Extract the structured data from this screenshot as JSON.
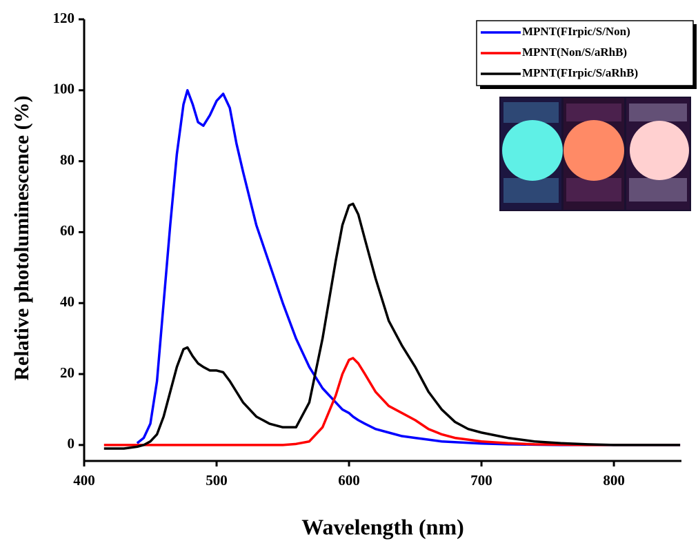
{
  "chart_data": {
    "type": "line",
    "x_label": "Wavelength (nm)",
    "y_label": "Relative photoluminescence (%)",
    "x": [
      415,
      430,
      440,
      445,
      450,
      455,
      460,
      465,
      470,
      475,
      478,
      482,
      486,
      490,
      495,
      500,
      505,
      510,
      515,
      520,
      530,
      540,
      550,
      560,
      570,
      580,
      590,
      595,
      600,
      603,
      607,
      612,
      620,
      630,
      640,
      650,
      660,
      670,
      680,
      690,
      700,
      720,
      740,
      760,
      780,
      800,
      820,
      850
    ],
    "series": [
      {
        "name": "MPNT(FIrpic/S/Non)",
        "color": "#0000ff",
        "values": [
          null,
          null,
          0.5,
          2,
          6,
          18,
          40,
          62,
          82,
          96,
          100,
          96,
          91,
          90,
          93,
          97,
          99,
          95,
          85,
          77,
          62,
          51,
          40,
          30,
          22,
          16,
          12,
          10,
          9,
          8,
          7,
          6,
          4.5,
          3.5,
          2.5,
          2,
          1.5,
          1,
          0.8,
          0.6,
          0.4,
          0.2,
          0.1,
          0,
          0,
          0,
          0,
          0
        ]
      },
      {
        "name": "MPNT(Non/S/aRhB)",
        "color": "#ff0000",
        "values": [
          0,
          0,
          0,
          0,
          0,
          0,
          0,
          0,
          0,
          0,
          0,
          0,
          0,
          0,
          0,
          0,
          0,
          0,
          0,
          0,
          0,
          0,
          0,
          0.3,
          1,
          5,
          14,
          20,
          24,
          24.5,
          23,
          20,
          15,
          11,
          9,
          7,
          4.5,
          3,
          2,
          1.5,
          1,
          0.5,
          0.2,
          0.1,
          0,
          0,
          0,
          0
        ]
      },
      {
        "name": "MPNT(FIrpic/S/aRhB)",
        "color": "#000000",
        "values": [
          -1,
          -1,
          -0.5,
          0,
          1,
          3,
          8,
          15,
          22,
          27,
          27.5,
          25,
          23,
          22,
          21,
          21,
          20.5,
          18,
          15,
          12,
          8,
          6,
          5,
          5,
          12,
          30,
          52,
          62,
          67.5,
          68,
          65,
          58,
          47,
          35,
          28,
          22,
          15,
          10,
          6.5,
          4.5,
          3.5,
          2,
          1,
          0.5,
          0.2,
          0,
          0,
          0
        ]
      }
    ],
    "xlim": [
      400,
      851
    ],
    "ylim": [
      -4.5,
      120
    ],
    "xticks": [
      400,
      500,
      600,
      700,
      800
    ],
    "yticks": [
      0,
      20,
      40,
      60,
      80,
      100,
      120
    ],
    "legend": "upper right"
  }
}
